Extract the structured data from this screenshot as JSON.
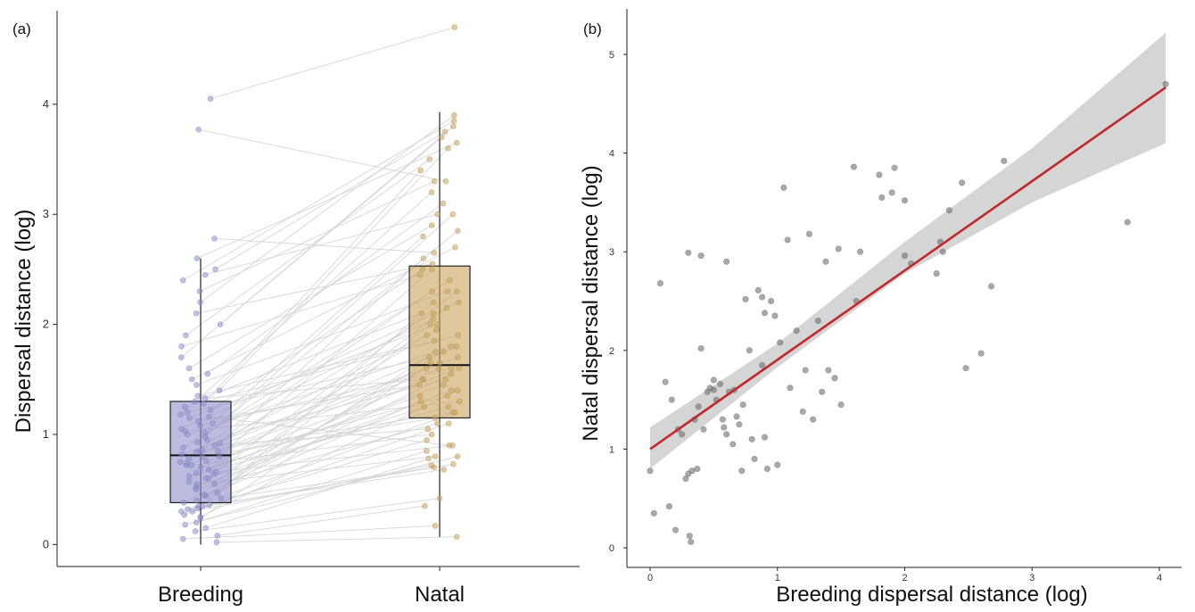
{
  "chart_data": [
    {
      "panel_label": "(a)",
      "type": "box",
      "categories": [
        "Breeding",
        "Natal"
      ],
      "ylabel": "Dispersal distance (log)",
      "xlabel": "",
      "ylim": [
        -0.2,
        4.85
      ],
      "yticks": [
        0,
        1,
        2,
        3,
        4
      ],
      "grid": false,
      "colors": {
        "Breeding": "#8f8fcc",
        "Natal": "#c9a45c",
        "pair_line": "#d4d4d4"
      },
      "boxes": [
        {
          "name": "Breeding",
          "min": 0.0,
          "q1": 0.38,
          "median": 0.81,
          "q3": 1.3,
          "max": 2.6
        },
        {
          "name": "Natal",
          "min": 0.07,
          "q1": 1.15,
          "median": 1.63,
          "q3": 2.53,
          "max": 3.93
        }
      ],
      "paired_points": {
        "breeding": [
          0.02,
          0.05,
          0.08,
          0.12,
          0.15,
          0.18,
          0.2,
          0.24,
          0.27,
          0.3,
          0.3,
          0.32,
          0.33,
          0.35,
          0.36,
          0.38,
          0.4,
          0.42,
          0.44,
          0.47,
          0.5,
          0.52,
          0.55,
          0.57,
          0.6,
          0.62,
          0.64,
          0.66,
          0.68,
          0.7,
          0.72,
          0.74,
          0.76,
          0.78,
          0.8,
          0.8,
          0.82,
          0.84,
          0.86,
          0.88,
          0.9,
          0.92,
          0.95,
          0.98,
          1.0,
          1.03,
          1.05,
          1.08,
          1.1,
          1.12,
          1.15,
          1.18,
          1.2,
          1.22,
          1.25,
          1.28,
          1.3,
          1.35,
          1.4,
          1.45,
          1.5,
          1.55,
          1.6,
          1.7,
          1.8,
          1.9,
          2.0,
          2.1,
          2.2,
          2.3,
          2.4,
          2.45,
          2.5,
          2.6,
          2.78,
          3.77,
          4.05,
          0.25,
          0.45,
          0.65,
          0.85,
          1.02,
          1.16,
          0.35,
          0.55,
          0.75,
          0.93,
          1.33,
          0.6,
          0.72
        ],
        "natal": [
          0.07,
          0.17,
          0.35,
          0.42,
          0.78,
          0.8,
          0.85,
          1.65,
          1.1,
          0.72,
          1.2,
          0.73,
          0.95,
          2.2,
          0.68,
          1.6,
          1.3,
          0.7,
          1.75,
          2.0,
          1.1,
          1.4,
          0.8,
          1.9,
          1.5,
          1.25,
          2.3,
          0.9,
          1.45,
          1.6,
          1.0,
          2.1,
          1.35,
          1.8,
          2.5,
          1.15,
          1.7,
          1.2,
          1.95,
          2.4,
          1.05,
          2.6,
          1.5,
          3.0,
          1.8,
          1.3,
          2.2,
          1.6,
          2.8,
          1.45,
          2.0,
          3.2,
          1.7,
          2.5,
          1.9,
          3.4,
          2.1,
          1.85,
          3.6,
          2.3,
          2.7,
          3.1,
          2.9,
          3.8,
          2.45,
          3.5,
          3.7,
          2.55,
          3.9,
          3.3,
          3.85,
          3.0,
          3.75,
          3.65,
          2.65,
          3.3,
          4.7,
          1.4,
          1.55,
          1.35,
          1.65,
          2.05,
          0.9,
          1.75,
          2.15,
          2.3,
          2.85,
          1.5,
          1.25,
          1.6
        ]
      }
    },
    {
      "panel_label": "(b)",
      "type": "scatter",
      "xlabel": "Breeding dispersal distance (log)",
      "ylabel": "Natal dispersal distance (log)",
      "xlim": [
        -0.2,
        4.25
      ],
      "ylim": [
        -0.2,
        5.3
      ],
      "xticks": [
        0,
        1,
        2,
        3,
        4
      ],
      "yticks": [
        0,
        1,
        2,
        3,
        4,
        5
      ],
      "grid": false,
      "colors": {
        "points": "#707070",
        "fit_line": "#c0282d",
        "ci_band": "#d3d3d3"
      },
      "fit": {
        "intercept": 1.0,
        "slope": 0.905,
        "x_range": [
          0,
          4.05
        ]
      },
      "ci": {
        "x": [
          0,
          1,
          2,
          3,
          4.05
        ],
        "lower": [
          0.8,
          1.83,
          2.78,
          3.5,
          4.1
        ],
        "upper": [
          1.22,
          2.07,
          3.1,
          4.05,
          5.22
        ]
      },
      "points": [
        {
          "x": 0.0,
          "y": 0.78
        },
        {
          "x": 0.03,
          "y": 0.35
        },
        {
          "x": 0.08,
          "y": 2.68
        },
        {
          "x": 0.12,
          "y": 1.68
        },
        {
          "x": 0.15,
          "y": 0.42
        },
        {
          "x": 0.17,
          "y": 1.5
        },
        {
          "x": 0.2,
          "y": 0.18
        },
        {
          "x": 0.22,
          "y": 1.2
        },
        {
          "x": 0.25,
          "y": 1.15
        },
        {
          "x": 0.28,
          "y": 0.7
        },
        {
          "x": 0.3,
          "y": 0.75
        },
        {
          "x": 0.3,
          "y": 2.99
        },
        {
          "x": 0.31,
          "y": 0.12
        },
        {
          "x": 0.32,
          "y": 0.06
        },
        {
          "x": 0.33,
          "y": 0.78
        },
        {
          "x": 0.35,
          "y": 1.3
        },
        {
          "x": 0.37,
          "y": 0.8
        },
        {
          "x": 0.38,
          "y": 1.43
        },
        {
          "x": 0.4,
          "y": 2.96
        },
        {
          "x": 0.42,
          "y": 1.2
        },
        {
          "x": 0.45,
          "y": 1.58
        },
        {
          "x": 0.5,
          "y": 1.7
        },
        {
          "x": 0.5,
          "y": 1.6
        },
        {
          "x": 0.52,
          "y": 1.5
        },
        {
          "x": 0.55,
          "y": 1.66
        },
        {
          "x": 0.57,
          "y": 1.3
        },
        {
          "x": 0.6,
          "y": 1.15
        },
        {
          "x": 0.6,
          "y": 2.9
        },
        {
          "x": 0.62,
          "y": 1.58
        },
        {
          "x": 0.65,
          "y": 1.05
        },
        {
          "x": 0.68,
          "y": 1.33
        },
        {
          "x": 0.7,
          "y": 1.25
        },
        {
          "x": 0.72,
          "y": 0.78
        },
        {
          "x": 0.75,
          "y": 2.52
        },
        {
          "x": 0.78,
          "y": 2.0
        },
        {
          "x": 0.8,
          "y": 1.1
        },
        {
          "x": 0.82,
          "y": 0.9
        },
        {
          "x": 0.85,
          "y": 2.61
        },
        {
          "x": 0.88,
          "y": 2.54
        },
        {
          "x": 0.9,
          "y": 1.12
        },
        {
          "x": 0.9,
          "y": 2.38
        },
        {
          "x": 0.92,
          "y": 0.8
        },
        {
          "x": 0.95,
          "y": 2.5
        },
        {
          "x": 0.98,
          "y": 2.35
        },
        {
          "x": 1.0,
          "y": 0.84
        },
        {
          "x": 1.02,
          "y": 2.08
        },
        {
          "x": 1.05,
          "y": 3.65
        },
        {
          "x": 1.08,
          "y": 3.12
        },
        {
          "x": 1.1,
          "y": 1.62
        },
        {
          "x": 1.15,
          "y": 2.2
        },
        {
          "x": 1.2,
          "y": 1.38
        },
        {
          "x": 1.22,
          "y": 1.8
        },
        {
          "x": 1.25,
          "y": 3.18
        },
        {
          "x": 1.28,
          "y": 1.3
        },
        {
          "x": 1.32,
          "y": 2.3
        },
        {
          "x": 1.35,
          "y": 1.58
        },
        {
          "x": 1.38,
          "y": 2.9
        },
        {
          "x": 1.4,
          "y": 1.8
        },
        {
          "x": 1.45,
          "y": 1.72
        },
        {
          "x": 1.48,
          "y": 3.03
        },
        {
          "x": 1.5,
          "y": 1.45
        },
        {
          "x": 1.6,
          "y": 3.86
        },
        {
          "x": 1.62,
          "y": 2.5
        },
        {
          "x": 1.65,
          "y": 3.0
        },
        {
          "x": 1.8,
          "y": 3.78
        },
        {
          "x": 1.82,
          "y": 3.55
        },
        {
          "x": 1.9,
          "y": 3.6
        },
        {
          "x": 1.92,
          "y": 3.85
        },
        {
          "x": 2.0,
          "y": 2.96
        },
        {
          "x": 2.0,
          "y": 3.52
        },
        {
          "x": 2.05,
          "y": 2.88
        },
        {
          "x": 2.25,
          "y": 2.78
        },
        {
          "x": 2.28,
          "y": 3.1
        },
        {
          "x": 2.3,
          "y": 3.0
        },
        {
          "x": 2.35,
          "y": 3.42
        },
        {
          "x": 2.45,
          "y": 3.7
        },
        {
          "x": 2.48,
          "y": 1.82
        },
        {
          "x": 2.6,
          "y": 1.97
        },
        {
          "x": 2.68,
          "y": 2.65
        },
        {
          "x": 2.78,
          "y": 3.92
        },
        {
          "x": 3.75,
          "y": 3.3
        },
        {
          "x": 4.05,
          "y": 4.7
        },
        {
          "x": 0.58,
          "y": 1.22
        },
        {
          "x": 0.88,
          "y": 1.85
        },
        {
          "x": 0.4,
          "y": 2.02
        },
        {
          "x": 0.47,
          "y": 1.62
        },
        {
          "x": 0.66,
          "y": 1.6
        },
        {
          "x": 0.73,
          "y": 1.45
        }
      ]
    }
  ]
}
